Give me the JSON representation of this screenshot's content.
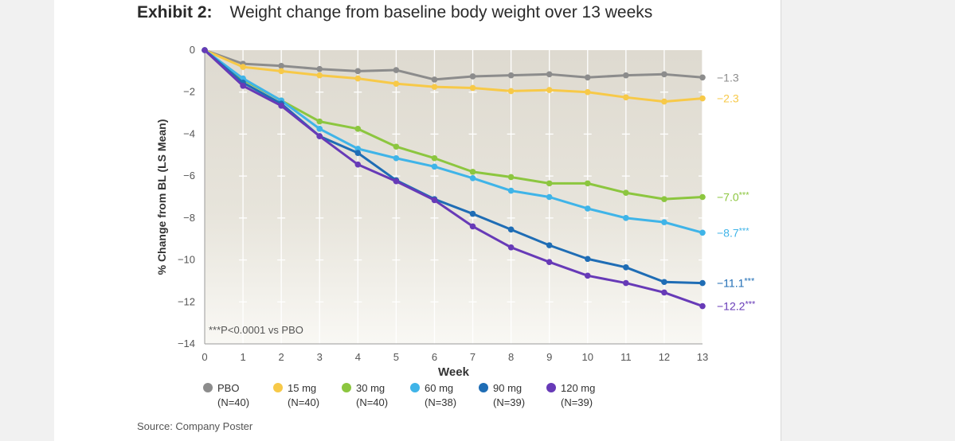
{
  "header": {
    "exhibit_label": "Exhibit 2:",
    "title": "Weight change from baseline body weight over 13 weeks"
  },
  "source": "Source: Company Poster",
  "chart_data": {
    "type": "line",
    "xlabel": "Week",
    "ylabel": "% Change from BL (LS Mean)",
    "x": [
      0,
      1,
      2,
      3,
      4,
      5,
      6,
      7,
      8,
      9,
      10,
      11,
      12,
      13
    ],
    "xlim": [
      0,
      13
    ],
    "ylim": [
      -14,
      0
    ],
    "yticks": [
      0,
      -2,
      -4,
      -6,
      -8,
      -10,
      -12,
      -14
    ],
    "y_tick_labels": [
      "0",
      "−2",
      "−4",
      "−6",
      "−8",
      "−10",
      "−12",
      "−14"
    ],
    "x_tick_labels": [
      "0",
      "1",
      "2",
      "3",
      "4",
      "5",
      "6",
      "7",
      "8",
      "9",
      "10",
      "11",
      "12",
      "13"
    ],
    "annotation": "***P<0.0001 vs PBO",
    "grid": "vertical",
    "legend_position": "bottom",
    "series": [
      {
        "name": "PBO",
        "n": "(N=40)",
        "color": "#8c8c8c",
        "end_label": "−1.3",
        "stars": "",
        "values": [
          0,
          -0.65,
          -0.75,
          -0.9,
          -1.0,
          -0.95,
          -1.4,
          -1.25,
          -1.2,
          -1.15,
          -1.3,
          -1.2,
          -1.15,
          -1.3
        ]
      },
      {
        "name": "15 mg",
        "n": "(N=40)",
        "color": "#f7c948",
        "end_label": "−2.3",
        "stars": "",
        "values": [
          0,
          -0.8,
          -1.0,
          -1.2,
          -1.35,
          -1.6,
          -1.75,
          -1.8,
          -1.95,
          -1.9,
          -2.0,
          -2.25,
          -2.45,
          -2.3
        ]
      },
      {
        "name": "30 mg",
        "n": "(N=40)",
        "color": "#8cc63f",
        "end_label": "−7.0",
        "stars": "***",
        "values": [
          0,
          -1.4,
          -2.4,
          -3.4,
          -3.75,
          -4.6,
          -5.15,
          -5.8,
          -6.05,
          -6.35,
          -6.35,
          -6.8,
          -7.1,
          -7.0
        ]
      },
      {
        "name": "60 mg",
        "n": "(N=38)",
        "color": "#3fb4e8",
        "end_label": "−8.7",
        "stars": "***",
        "values": [
          0,
          -1.35,
          -2.4,
          -3.75,
          -4.7,
          -5.15,
          -5.55,
          -6.1,
          -6.7,
          -7.0,
          -7.55,
          -8.0,
          -8.2,
          -8.7
        ]
      },
      {
        "name": "90 mg",
        "n": "(N=39)",
        "color": "#1f6db5",
        "end_label": "−11.1",
        "stars": "***",
        "values": [
          0,
          -1.55,
          -2.55,
          -4.1,
          -4.9,
          -6.2,
          -7.1,
          -7.8,
          -8.55,
          -9.3,
          -9.95,
          -10.35,
          -11.05,
          -11.1
        ]
      },
      {
        "name": "120 mg",
        "n": "(N=39)",
        "color": "#673ab7",
        "end_label": "−12.2",
        "stars": "***",
        "values": [
          0,
          -1.7,
          -2.65,
          -4.1,
          -5.45,
          -6.25,
          -7.15,
          -8.4,
          -9.4,
          -10.1,
          -10.75,
          -11.1,
          -11.55,
          -12.2
        ]
      }
    ]
  }
}
